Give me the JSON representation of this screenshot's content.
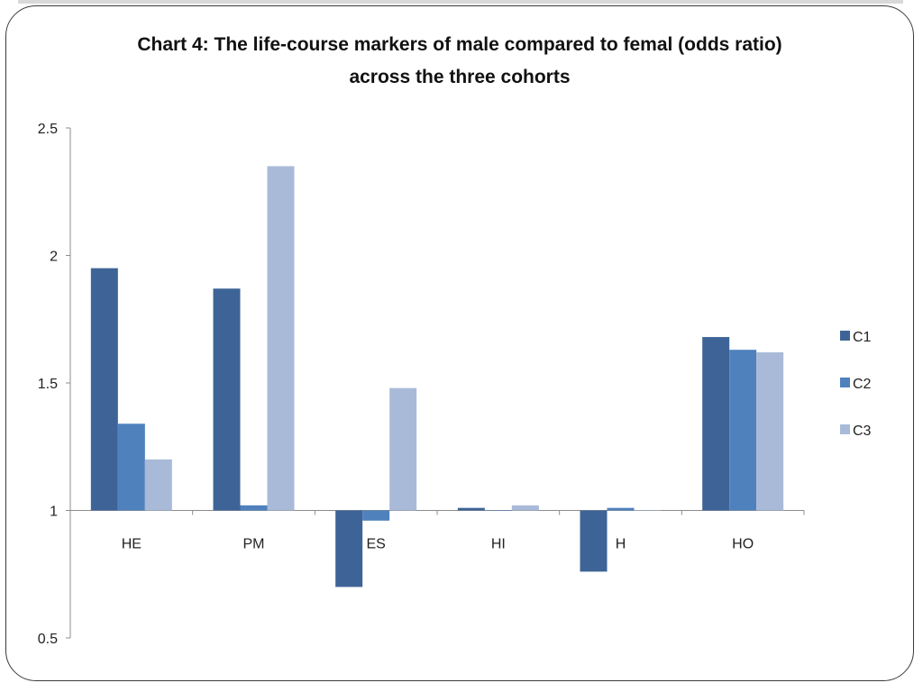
{
  "chart_data": {
    "type": "bar",
    "title_line1": "Chart 4: The life-course markers of male compared to femal (odds ratio)",
    "title_line2": "across the three cohorts",
    "categories": [
      "HE",
      "PM",
      "ES",
      "HI",
      "H",
      "HO"
    ],
    "series": [
      {
        "name": "C1",
        "color": "#3e6497",
        "values": [
          1.95,
          1.87,
          0.7,
          1.01,
          0.76,
          1.68
        ]
      },
      {
        "name": "C2",
        "color": "#4f81bd",
        "values": [
          1.34,
          1.02,
          0.96,
          1.0,
          1.01,
          1.63
        ]
      },
      {
        "name": "C3",
        "color": "#a9bad9",
        "values": [
          1.2,
          2.35,
          1.48,
          1.02,
          1.0,
          1.62
        ]
      }
    ],
    "baseline": 1,
    "ylim": [
      0.5,
      2.5
    ],
    "yticks": [
      "0.5",
      "1",
      "1.5",
      "2",
      "2.5"
    ],
    "legend_position": "right",
    "grid": false,
    "xlabel": "",
    "ylabel": ""
  }
}
